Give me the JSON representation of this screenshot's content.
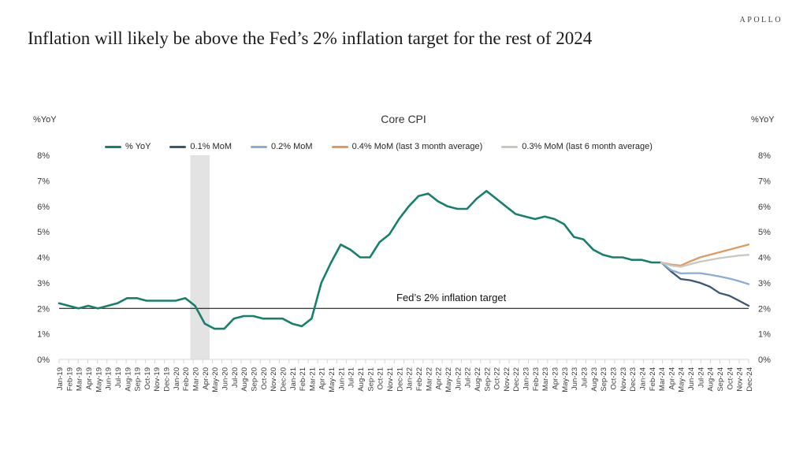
{
  "header": {
    "brand": "APOLLO",
    "title": "Inflation will likely be above the Fed’s 2% inflation target for the rest of 2024"
  },
  "chart_data": {
    "type": "line",
    "title": "Core CPI",
    "left_axis_unit": "%YoY",
    "right_axis_unit": "%YoY",
    "ylim": [
      0,
      8
    ],
    "y_ticks": [
      "0%",
      "1%",
      "2%",
      "3%",
      "4%",
      "5%",
      "6%",
      "7%",
      "8%"
    ],
    "grid": false,
    "legend_position": "top",
    "axis_color": "#d4d4d4",
    "x_labels": [
      "Jan-19",
      "Feb-19",
      "Mar-19",
      "Apr-19",
      "May-19",
      "Jun-19",
      "Jul-19",
      "Aug-19",
      "Sep-19",
      "Oct-19",
      "Nov-19",
      "Dec-19",
      "Jan-20",
      "Feb-20",
      "Mar-20",
      "Apr-20",
      "May-20",
      "Jun-20",
      "Jul-20",
      "Aug-20",
      "Sep-20",
      "Oct-20",
      "Nov-20",
      "Dec-20",
      "Jan-21",
      "Feb-21",
      "Mar-21",
      "Apr-21",
      "May-21",
      "Jun-21",
      "Jul-21",
      "Aug-21",
      "Sep-21",
      "Oct-21",
      "Nov-21",
      "Dec-21",
      "Jan-22",
      "Feb-22",
      "Mar-22",
      "Apr-22",
      "May-22",
      "Jun-22",
      "Jul-22",
      "Aug-22",
      "Sep-22",
      "Oct-22",
      "Nov-22",
      "Dec-22",
      "Jan-23",
      "Feb-23",
      "Mar-23",
      "Apr-23",
      "May-23",
      "Jun-23",
      "Jul-23",
      "Aug-23",
      "Sep-23",
      "Oct-23",
      "Nov-23",
      "Dec-23",
      "Jan-24",
      "Feb-24",
      "Mar-24",
      "Apr-24",
      "May-24",
      "Jun-24",
      "Jul-24",
      "Aug-24",
      "Sep-24",
      "Oct-24",
      "Nov-24",
      "Dec-24"
    ],
    "recession_band": {
      "from": "Mar-20",
      "to": "Apr-20",
      "color": "#e3e3e3"
    },
    "target_line": {
      "value": 2,
      "label": "Fed’s 2% inflation target",
      "color": "#000000"
    },
    "series": [
      {
        "name": "% YoY",
        "color": "#17806d",
        "width": 2.6,
        "start_label": "Jan-19",
        "values": [
          2.2,
          2.1,
          2.0,
          2.1,
          2.0,
          2.1,
          2.2,
          2.4,
          2.4,
          2.3,
          2.3,
          2.3,
          2.3,
          2.4,
          2.1,
          1.4,
          1.2,
          1.2,
          1.6,
          1.7,
          1.7,
          1.6,
          1.6,
          1.6,
          1.4,
          1.3,
          1.6,
          3.0,
          3.8,
          4.5,
          4.3,
          4.0,
          4.0,
          4.6,
          4.9,
          5.5,
          6.0,
          6.4,
          6.5,
          6.2,
          6.0,
          5.9,
          5.9,
          6.3,
          6.6,
          6.3,
          6.0,
          5.7,
          5.6,
          5.5,
          5.6,
          5.5,
          5.3,
          4.8,
          4.7,
          4.3,
          4.1,
          4.0,
          4.0,
          3.9,
          3.9,
          3.8,
          3.8
        ]
      },
      {
        "name": "0.1% MoM",
        "color": "#3a5675",
        "width": 2.3,
        "start_label": "Mar-24",
        "values": [
          3.8,
          3.45,
          3.15,
          3.1,
          3.0,
          2.85,
          2.6,
          2.5,
          2.3,
          2.1
        ]
      },
      {
        "name": "0.2% MoM",
        "color": "#8aaed3",
        "width": 2.3,
        "start_label": "Mar-24",
        "values": [
          3.8,
          3.5,
          3.37,
          3.38,
          3.38,
          3.32,
          3.25,
          3.17,
          3.07,
          2.95
        ]
      },
      {
        "name": "0.4% MoM (last 3 month average)",
        "color": "#e0995e",
        "width": 2.3,
        "start_label": "Mar-24",
        "values": [
          3.8,
          3.72,
          3.68,
          3.85,
          4.0,
          4.1,
          4.2,
          4.3,
          4.4,
          4.5
        ]
      },
      {
        "name": "0.3% MoM (last 6 month average)",
        "color": "#c8c7c0",
        "width": 2.3,
        "start_label": "Mar-24",
        "values": [
          3.8,
          3.68,
          3.63,
          3.73,
          3.83,
          3.9,
          3.97,
          4.02,
          4.07,
          4.1
        ]
      }
    ]
  }
}
